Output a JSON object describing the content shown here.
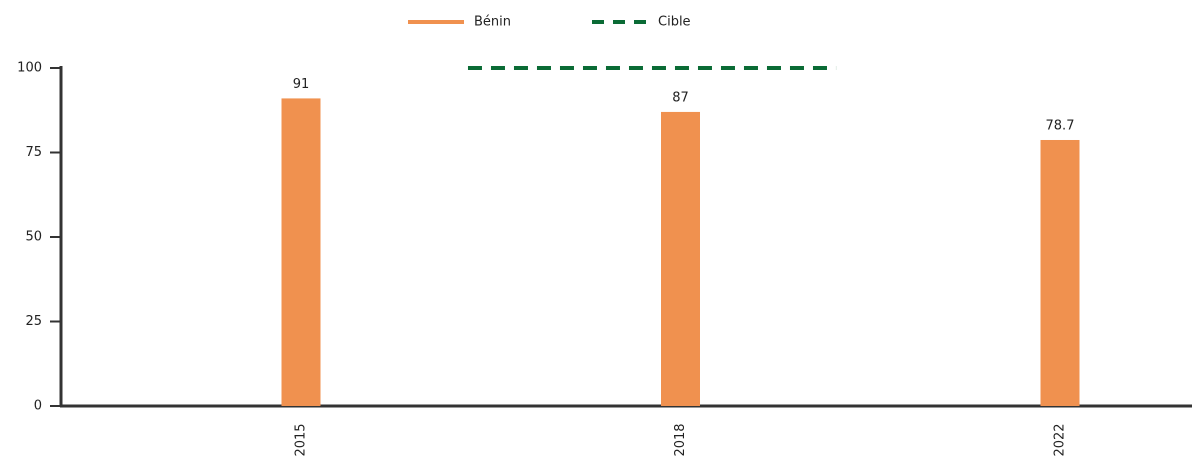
{
  "chart_data": {
    "type": "bar",
    "categories": [
      "2015",
      "2018",
      "2022"
    ],
    "series": [
      {
        "name": "Bénin",
        "color": "#f0914f",
        "values": [
          91,
          87,
          78.7
        ]
      },
      {
        "name": "Cible",
        "color": "#0a6b35",
        "type": "line",
        "dashed": true,
        "values": [
          null,
          100,
          null
        ]
      }
    ],
    "ylim": [
      0,
      100
    ],
    "yticks": [
      0,
      25,
      50,
      75,
      100
    ],
    "grid": false,
    "legend": "top"
  }
}
